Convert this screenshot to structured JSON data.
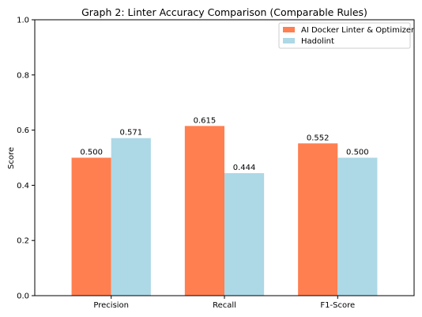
{
  "chart_data": {
    "type": "bar",
    "title": "Graph 2: Linter Accuracy Comparison (Comparable Rules)",
    "xlabel": "",
    "ylabel": "Score",
    "categories": [
      "Precision",
      "Recall",
      "F1-Score"
    ],
    "series": [
      {
        "name": "AI Docker Linter & Optimizer",
        "values": [
          0.5,
          0.615,
          0.552
        ],
        "labels": [
          "0.500",
          "0.615",
          "0.552"
        ],
        "color": "#ff7f50"
      },
      {
        "name": "Hadolint",
        "values": [
          0.571,
          0.444,
          0.5
        ],
        "labels": [
          "0.571",
          "0.444",
          "0.500"
        ],
        "color": "#add8e6"
      }
    ],
    "ylim": [
      0,
      1.0
    ],
    "yticks": [
      0.0,
      0.2,
      0.4,
      0.6,
      0.8,
      1.0
    ],
    "ytick_labels": [
      "0.0",
      "0.2",
      "0.4",
      "0.6",
      "0.8",
      "1.0"
    ],
    "grid": false,
    "legend_position": "top-right"
  }
}
